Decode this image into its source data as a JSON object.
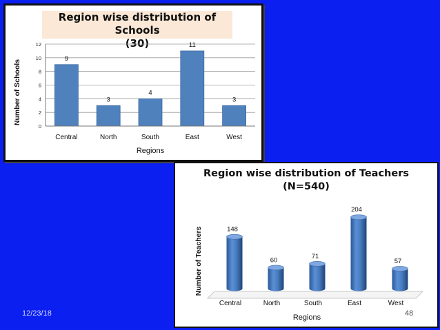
{
  "slide": {
    "date": "12/23/18",
    "page_number": "48",
    "background_color": "#0a1ff0"
  },
  "chart_data": [
    {
      "type": "bar",
      "title": "Region wise distribution of Schools",
      "subtitle": "(30)",
      "xlabel": "Regions",
      "ylabel": "Number of Schools",
      "categories": [
        "Central",
        "North",
        "South",
        "East",
        "West"
      ],
      "values": [
        9,
        3,
        4,
        11,
        3
      ],
      "data_labels": [
        "9",
        "3",
        "4",
        "11",
        "3"
      ],
      "ylim": [
        0,
        12
      ],
      "yticks": [
        "0",
        "2",
        "4",
        "6",
        "8",
        "10",
        "12"
      ],
      "grid": true,
      "bar_color": "#4f81bd"
    },
    {
      "type": "bar",
      "title": "Region wise distribution of Teachers",
      "subtitle": "(N=540)",
      "xlabel": "Regions",
      "ylabel": "Number of Teachers",
      "categories": [
        "Central",
        "North",
        "South",
        "East",
        "West"
      ],
      "values": [
        148,
        60,
        71,
        204,
        57
      ],
      "data_labels": [
        "148",
        "60",
        "71",
        "204",
        "57"
      ],
      "ylim": [
        0,
        220
      ],
      "grid": false,
      "style": "3d-cylinder",
      "bar_color": "#4a7ec2"
    }
  ]
}
